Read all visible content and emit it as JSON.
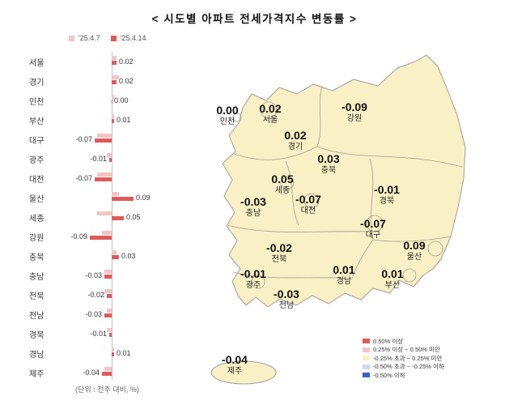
{
  "title": "< 시도별 아파트 전세가격지수 변동률 >",
  "unit_note": "(단위 : 전주 대비, %)",
  "chart_legend": {
    "prev": "'25.4.7",
    "curr": "'25.4.14"
  },
  "colors": {
    "prev": "#F5C4C4",
    "curr": "#E05A5A",
    "map_fill": "#FAF0C5",
    "map_border": "#9E9E9E"
  },
  "chart_data": {
    "type": "bar",
    "orientation": "horizontal",
    "title": "시도별 아파트 전세가격지수 변동률",
    "unit": "전주 대비, %",
    "categories": [
      "서울",
      "경기",
      "인천",
      "부산",
      "대구",
      "광주",
      "대전",
      "울산",
      "세종",
      "강원",
      "충북",
      "충남",
      "전북",
      "전남",
      "경북",
      "경남",
      "제주"
    ],
    "series": [
      {
        "name": "'25.4.7",
        "values": [
          0.02,
          0.03,
          0.01,
          0.01,
          -0.06,
          -0.02,
          -0.06,
          0.03,
          -0.06,
          -0.04,
          0.02,
          -0.03,
          -0.03,
          -0.02,
          -0.02,
          0.01,
          -0.03
        ]
      },
      {
        "name": "'25.4.14",
        "values": [
          0.02,
          0.02,
          0.0,
          0.01,
          -0.07,
          -0.01,
          -0.07,
          0.09,
          0.05,
          -0.09,
          0.03,
          -0.03,
          -0.02,
          -0.03,
          -0.01,
          0.01,
          -0.04
        ]
      }
    ],
    "xlim": [
      -0.1,
      0.1
    ],
    "legend_position": "top"
  },
  "map": {
    "regions": [
      {
        "name": "인천",
        "value": "0.00"
      },
      {
        "name": "서울",
        "value": "0.02"
      },
      {
        "name": "강원",
        "value": "-0.09"
      },
      {
        "name": "경기",
        "value": "0.02"
      },
      {
        "name": "충북",
        "value": "0.03"
      },
      {
        "name": "세종",
        "value": "0.05"
      },
      {
        "name": "대전",
        "value": "-0.07"
      },
      {
        "name": "충남",
        "value": "-0.03"
      },
      {
        "name": "경북",
        "value": "-0.01"
      },
      {
        "name": "대구",
        "value": "-0.07"
      },
      {
        "name": "울산",
        "value": "0.09"
      },
      {
        "name": "전북",
        "value": "-0.02"
      },
      {
        "name": "경남",
        "value": "0.01"
      },
      {
        "name": "광주",
        "value": "-0.01"
      },
      {
        "name": "부산",
        "value": "0.01"
      },
      {
        "name": "전남",
        "value": "-0.03"
      },
      {
        "name": "제주",
        "value": "-0.04"
      }
    ]
  },
  "map_legend": [
    {
      "color": "#E05A5A",
      "label": "0.50% 이상"
    },
    {
      "color": "#F5C4C4",
      "label": "0.25% 이상 ~ 0.50% 미만"
    },
    {
      "color": "#FAF0C5",
      "label": "-0.25% 초과 ~ 0.25% 미만"
    },
    {
      "color": "#C9D9F0",
      "label": "-0.50% 초과 ~ -0.25% 이하"
    },
    {
      "color": "#3A63C3",
      "label": "-0.50% 이하"
    }
  ]
}
